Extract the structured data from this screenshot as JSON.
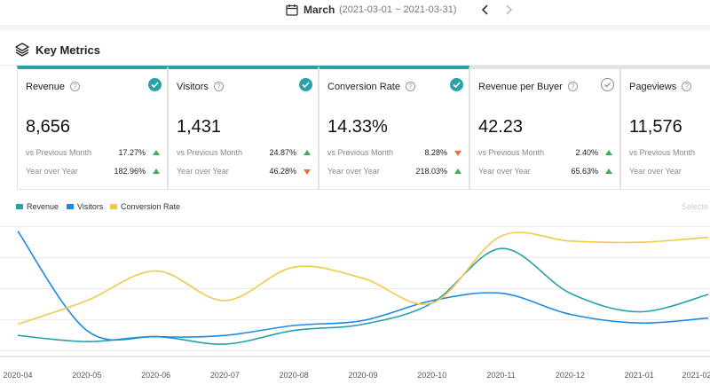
{
  "header": {
    "month": "March",
    "range": "(2021-03-01 ~ 2021-03-31)",
    "calendar_icon": "calendar-icon",
    "prev_icon": "chevron-left-icon",
    "next_icon": "chevron-right-icon"
  },
  "section": {
    "title": "Key Metrics",
    "icon": "layers-icon"
  },
  "colors": {
    "accent": "#2aa0a8",
    "revenue": "#2aa0a8",
    "visitors": "#1e88e5",
    "conversion": "#f2c94c",
    "up": "#3fae5a",
    "down": "#e8743b"
  },
  "cards": [
    {
      "label": "Revenue",
      "value": "8,656",
      "selected": true,
      "vs_label": "vs Previous Month",
      "vs_pct": "17.27%",
      "vs_dir": "up",
      "yoy_label": "Year over Year",
      "yoy_pct": "182.96%",
      "yoy_dir": "up"
    },
    {
      "label": "Visitors",
      "value": "1,431",
      "selected": true,
      "vs_label": "vs Previous Month",
      "vs_pct": "24.87%",
      "vs_dir": "up",
      "yoy_label": "Year over Year",
      "yoy_pct": "46.28%",
      "yoy_dir": "down"
    },
    {
      "label": "Conversion Rate",
      "value": "14.33%",
      "selected": true,
      "vs_label": "vs Previous Month",
      "vs_pct": "8.28%",
      "vs_dir": "down",
      "yoy_label": "Year over Year",
      "yoy_pct": "218.03%",
      "yoy_dir": "up"
    },
    {
      "label": "Revenue per Buyer",
      "value": "42.23",
      "selected": false,
      "vs_label": "vs Previous Month",
      "vs_pct": "2.40%",
      "vs_dir": "up",
      "yoy_label": "Year over Year",
      "yoy_pct": "65.63%",
      "yoy_dir": "up"
    },
    {
      "label": "Pageviews",
      "value": "11,576",
      "selected": false,
      "vs_label": "vs Previous Month",
      "vs_pct": "",
      "vs_dir": "up",
      "yoy_label": "Year over Year",
      "yoy_pct": "",
      "yoy_dir": "up"
    }
  ],
  "legend": {
    "items": [
      "Revenue",
      "Visitors",
      "Conversion Rate"
    ],
    "selected_hint": "Selecte"
  },
  "chart_data": {
    "type": "line",
    "x": [
      "2020-04",
      "2020-05",
      "2020-06",
      "2020-07",
      "2020-08",
      "2020-09",
      "2020-10",
      "2020-11",
      "2020-12",
      "2021-01",
      "2021-02"
    ],
    "ylim": [
      0,
      100
    ],
    "grid": true,
    "legend_position": "top-left",
    "series": [
      {
        "name": "Revenue",
        "values": [
          12,
          7,
          11,
          5,
          16,
          21,
          38,
          82,
          46,
          31,
          45
        ]
      },
      {
        "name": "Visitors",
        "values": [
          96,
          16,
          11,
          12,
          20,
          24,
          40,
          46,
          29,
          22,
          26
        ]
      },
      {
        "name": "Conversion Rate",
        "values": [
          21,
          40,
          64,
          40,
          67,
          58,
          38,
          92,
          88,
          87,
          91
        ]
      }
    ]
  }
}
